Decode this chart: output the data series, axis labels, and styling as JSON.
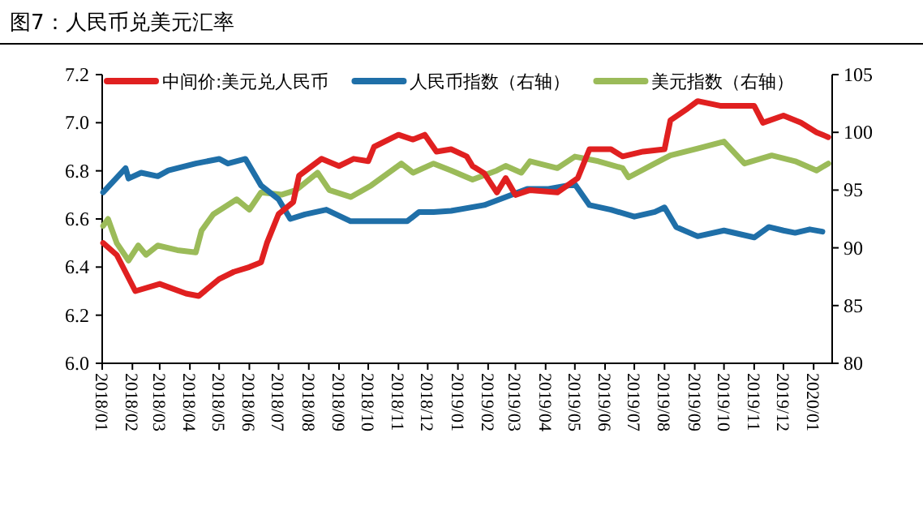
{
  "chart_data": {
    "type": "line",
    "title": "图7：人民币兑美元汇率",
    "legend": "top",
    "grid": false,
    "line_style": "solid",
    "marker": "none",
    "xlim": [
      "2018-01-01",
      "2020-01-20"
    ],
    "xticks": [
      {
        "value": "2018-01-01",
        "label": "2018/01"
      },
      {
        "value": "2018-02-01",
        "label": "2018/02"
      },
      {
        "value": "2018-03-01",
        "label": "2018/03"
      },
      {
        "value": "2018-04-01",
        "label": "2018/04"
      },
      {
        "value": "2018-05-01",
        "label": "2018/05"
      },
      {
        "value": "2018-06-01",
        "label": "2018/06"
      },
      {
        "value": "2018-07-01",
        "label": "2018/07"
      },
      {
        "value": "2018-08-01",
        "label": "2018/08"
      },
      {
        "value": "2018-09-01",
        "label": "2018/09"
      },
      {
        "value": "2018-10-01",
        "label": "2018/10"
      },
      {
        "value": "2018-11-01",
        "label": "2018/11"
      },
      {
        "value": "2018-12-01",
        "label": "2018/12"
      },
      {
        "value": "2019-01-01",
        "label": "2019/01"
      },
      {
        "value": "2019-02-01",
        "label": "2019/02"
      },
      {
        "value": "2019-03-01",
        "label": "2019/03"
      },
      {
        "value": "2019-04-01",
        "label": "2019/04"
      },
      {
        "value": "2019-05-01",
        "label": "2019/05"
      },
      {
        "value": "2019-06-01",
        "label": "2019/06"
      },
      {
        "value": "2019-07-01",
        "label": "2019/07"
      },
      {
        "value": "2019-08-01",
        "label": "2019/08"
      },
      {
        "value": "2019-09-01",
        "label": "2019/09"
      },
      {
        "value": "2019-10-01",
        "label": "2019/10"
      },
      {
        "value": "2019-11-01",
        "label": "2019/11"
      },
      {
        "value": "2019-12-01",
        "label": "2019/12"
      },
      {
        "value": "2020-01-01",
        "label": "2020/01"
      }
    ],
    "ylim": [
      6.0,
      7.2
    ],
    "yticks": [
      {
        "value": 6,
        "label": "6.0"
      },
      6.2,
      6.4,
      6.6,
      6.8,
      {
        "value": 7,
        "label": "7.0"
      },
      7.2
    ],
    "y2lim": [
      80,
      105
    ],
    "y2ticks": [
      80,
      85,
      90,
      95,
      100,
      105
    ],
    "series": [
      {
        "name": "中间价:美元兑人民币",
        "color": "#e02020",
        "x": [
          "2018-01-02",
          "2018-01-16",
          "2018-02-04",
          "2018-03-01",
          "2018-03-28",
          "2018-04-10",
          "2018-05-01",
          "2018-05-16",
          "2018-06-01",
          "2018-06-13",
          "2018-06-19",
          "2018-07-01",
          "2018-07-16",
          "2018-07-22",
          "2018-08-14",
          "2018-09-01",
          "2018-09-16",
          "2018-10-01",
          "2018-10-07",
          "2018-11-01",
          "2018-11-16",
          "2018-11-28",
          "2018-12-10",
          "2018-12-25",
          "2019-01-10",
          "2019-01-16",
          "2019-01-28",
          "2019-02-10",
          "2019-02-19",
          "2019-03-01",
          "2019-03-16",
          "2019-04-13",
          "2019-05-04",
          "2019-05-16",
          "2019-06-07",
          "2019-06-19",
          "2019-07-10",
          "2019-08-01",
          "2019-08-07",
          "2019-08-25",
          "2019-09-04",
          "2019-09-28",
          "2019-11-01",
          "2019-11-10",
          "2019-12-01",
          "2019-12-19",
          "2020-01-04",
          "2020-01-16"
        ],
        "values": [
          6.5,
          6.45,
          6.3,
          6.33,
          6.29,
          6.28,
          6.35,
          6.38,
          6.4,
          6.42,
          6.5,
          6.62,
          6.67,
          6.78,
          6.85,
          6.82,
          6.85,
          6.84,
          6.9,
          6.95,
          6.93,
          6.95,
          6.88,
          6.89,
          6.86,
          6.82,
          6.79,
          6.71,
          6.77,
          6.7,
          6.72,
          6.71,
          6.77,
          6.89,
          6.89,
          6.86,
          6.88,
          6.89,
          7.01,
          7.06,
          7.09,
          7.07,
          7.07,
          7.0,
          7.03,
          7.0,
          6.96,
          6.94
        ]
      },
      {
        "name": "人民币指数（右轴）",
        "color": "#1f6fa8",
        "axis": "y2",
        "x": [
          "2018-01-02",
          "2018-01-25",
          "2018-01-28",
          "2018-02-10",
          "2018-02-27",
          "2018-03-10",
          "2018-04-07",
          "2018-05-01",
          "2018-05-10",
          "2018-05-28",
          "2018-06-13",
          "2018-07-01",
          "2018-07-13",
          "2018-07-28",
          "2018-08-19",
          "2018-09-13",
          "2018-10-13",
          "2018-11-10",
          "2018-11-22",
          "2018-12-07",
          "2018-12-25",
          "2019-01-28",
          "2019-02-19",
          "2019-03-13",
          "2019-04-04",
          "2019-05-01",
          "2019-05-16",
          "2019-06-07",
          "2019-07-01",
          "2019-07-22",
          "2019-08-01",
          "2019-08-13",
          "2019-09-04",
          "2019-10-01",
          "2019-11-01",
          "2019-11-16",
          "2019-12-01",
          "2019-12-13",
          "2019-12-28",
          "2020-01-10"
        ],
        "values": [
          94.8,
          96.9,
          96.0,
          96.5,
          96.2,
          96.7,
          97.3,
          97.7,
          97.3,
          97.7,
          95.4,
          94.2,
          92.5,
          92.9,
          93.3,
          92.3,
          92.3,
          92.3,
          93.1,
          93.1,
          93.2,
          93.7,
          94.4,
          95.1,
          95.1,
          95.5,
          93.7,
          93.3,
          92.7,
          93.1,
          93.5,
          91.8,
          91.0,
          91.5,
          90.9,
          91.8,
          91.5,
          91.3,
          91.6,
          91.4
        ]
      },
      {
        "name": "美元指数（右轴）",
        "color": "#9bbb59",
        "axis": "y2",
        "x": [
          "2018-01-02",
          "2018-01-07",
          "2018-01-16",
          "2018-01-28",
          "2018-02-07",
          "2018-02-15",
          "2018-02-27",
          "2018-03-19",
          "2018-04-07",
          "2018-04-13",
          "2018-04-25",
          "2018-05-19",
          "2018-06-01",
          "2018-06-13",
          "2018-07-04",
          "2018-07-19",
          "2018-08-10",
          "2018-08-22",
          "2018-09-13",
          "2018-10-04",
          "2018-11-04",
          "2018-11-16",
          "2018-12-07",
          "2018-12-25",
          "2019-01-16",
          "2019-02-10",
          "2019-02-19",
          "2019-03-07",
          "2019-03-16",
          "2019-04-13",
          "2019-05-01",
          "2019-05-25",
          "2019-06-19",
          "2019-06-25",
          "2019-07-22",
          "2019-08-07",
          "2019-09-04",
          "2019-10-01",
          "2019-10-22",
          "2019-11-19",
          "2019-12-13",
          "2020-01-04",
          "2020-01-16"
        ],
        "values": [
          91.9,
          92.5,
          90.4,
          88.9,
          90.2,
          89.4,
          90.2,
          89.8,
          89.6,
          91.5,
          92.9,
          94.2,
          93.3,
          94.8,
          94.6,
          95.0,
          96.5,
          95.0,
          94.4,
          95.4,
          97.3,
          96.5,
          97.3,
          96.7,
          95.9,
          96.7,
          97.1,
          96.5,
          97.5,
          96.9,
          97.9,
          97.5,
          96.9,
          96.1,
          97.3,
          98.0,
          98.6,
          99.2,
          97.3,
          98.0,
          97.5,
          96.7,
          97.3
        ]
      }
    ]
  }
}
